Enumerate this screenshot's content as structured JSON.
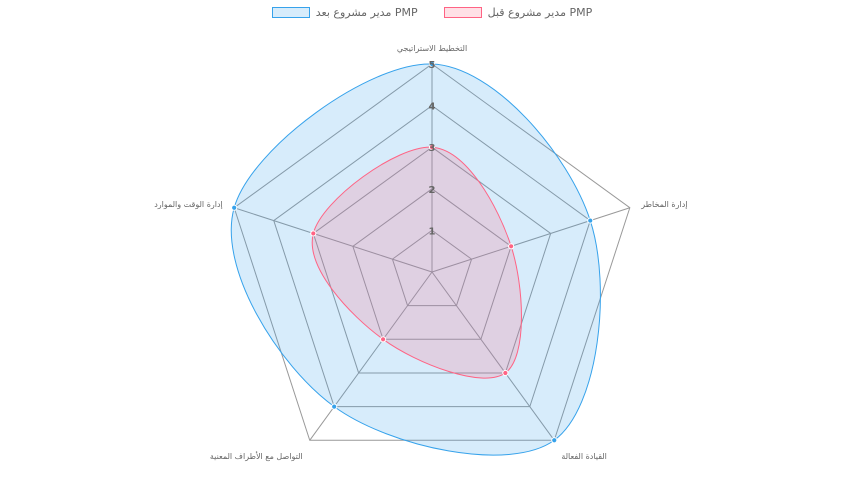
{
  "chart_data": {
    "type": "radar",
    "axes": [
      "التخطيط الاستراتيجي",
      "إدارة المخاطر",
      "القيادة الفعالة",
      "التواصل مع الأطراف المعنية",
      "إدارة الوقت والموارد"
    ],
    "r_ticks": [
      "1",
      "2",
      "3",
      "4",
      "5"
    ],
    "r_range": [
      0,
      5
    ],
    "series": [
      {
        "name": "مدير مشروع قبل PMP",
        "values": [
          3,
          2,
          3,
          2,
          3
        ],
        "color": "#ff6384"
      },
      {
        "name": "مدير مشروع بعد PMP",
        "values": [
          5,
          4,
          5,
          4,
          5
        ],
        "color": "#36a2eb"
      }
    ],
    "legend_position": "top",
    "grid": true
  }
}
